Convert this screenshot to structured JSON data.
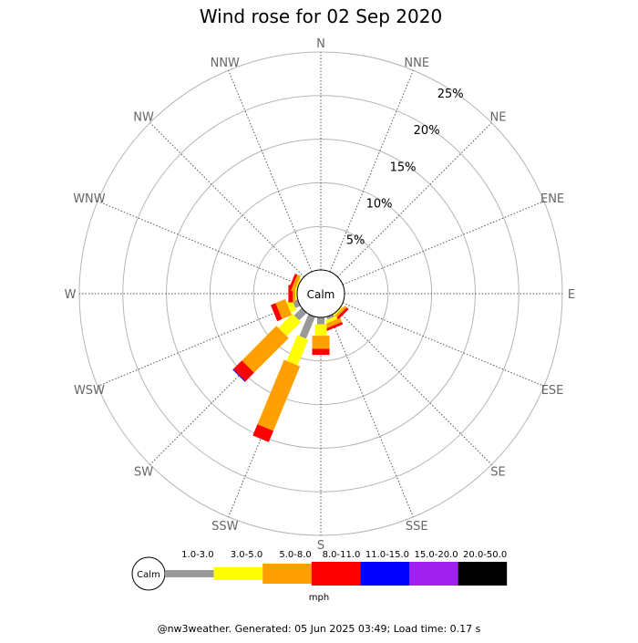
{
  "chart_data": {
    "type": "wind-rose",
    "title": "Wind rose for 02 Sep 2020",
    "center_label": "Calm",
    "directions": [
      "N",
      "NNE",
      "NE",
      "ENE",
      "E",
      "ESE",
      "SE",
      "SSE",
      "S",
      "SSW",
      "SW",
      "WSW",
      "W",
      "WNW",
      "NW",
      "NNW"
    ],
    "ring_ticks": [
      5,
      10,
      15,
      20,
      25
    ],
    "ring_tick_labels": [
      "5%",
      "10%",
      "15%",
      "20%",
      "25%"
    ],
    "rmax_percent": 25,
    "speed_bins": [
      {
        "label": "1.0-3.0",
        "color": "#999999"
      },
      {
        "label": "3.0-5.0",
        "color": "#ffff00"
      },
      {
        "label": "5.0-8.0",
        "color": "#ffa000"
      },
      {
        "label": "8.0-11.0",
        "color": "#ff0000"
      },
      {
        "label": "11.0-15.0",
        "color": "#0000ff"
      },
      {
        "label": "15.0-20.0",
        "color": "#a020f0"
      },
      {
        "label": "20.0-50.0",
        "color": "#000000"
      }
    ],
    "legend_unit": "mph",
    "series": [
      {
        "direction": "N",
        "values": [
          0,
          0,
          0,
          0,
          0,
          0,
          0
        ]
      },
      {
        "direction": "NNE",
        "values": [
          0,
          0,
          0,
          0,
          0,
          0,
          0
        ]
      },
      {
        "direction": "NE",
        "values": [
          0,
          0,
          0,
          0,
          0,
          0,
          0
        ]
      },
      {
        "direction": "ENE",
        "values": [
          0,
          0,
          0,
          0,
          0,
          0,
          0
        ]
      },
      {
        "direction": "E",
        "values": [
          0,
          0,
          0,
          0,
          0,
          0,
          0
        ]
      },
      {
        "direction": "ESE",
        "values": [
          0,
          0,
          0,
          0,
          0,
          0,
          0
        ]
      },
      {
        "direction": "SE",
        "values": [
          0,
          0.2,
          0.3,
          0.3,
          0,
          0,
          0
        ]
      },
      {
        "direction": "SSE",
        "values": [
          0.3,
          0.4,
          0.5,
          0.3,
          0,
          0,
          0
        ]
      },
      {
        "direction": "S",
        "values": [
          0.8,
          1.3,
          1.5,
          0.7,
          0,
          0,
          0
        ]
      },
      {
        "direction": "SSW",
        "values": [
          2.7,
          3.2,
          8.0,
          1.4,
          0,
          0,
          0
        ]
      },
      {
        "direction": "SW",
        "values": [
          1.2,
          2.3,
          5.6,
          1.4,
          0.1,
          0,
          0
        ]
      },
      {
        "direction": "WSW",
        "values": [
          0.6,
          0.7,
          1.2,
          0.6,
          0,
          0,
          0
        ]
      },
      {
        "direction": "W",
        "values": [
          0,
          0.2,
          0.3,
          0.5,
          0,
          0,
          0
        ]
      },
      {
        "direction": "WNW",
        "values": [
          0,
          0.2,
          0.4,
          0.3,
          0,
          0,
          0
        ]
      },
      {
        "direction": "NW",
        "values": [
          0,
          0,
          0,
          0,
          0,
          0,
          0
        ]
      },
      {
        "direction": "NNW",
        "values": [
          0,
          0,
          0,
          0,
          0,
          0,
          0
        ]
      }
    ]
  },
  "footer": {
    "text": "@nw3weather. Generated: 05 Jun 2025 03:49; Load time: 0.17 s"
  }
}
